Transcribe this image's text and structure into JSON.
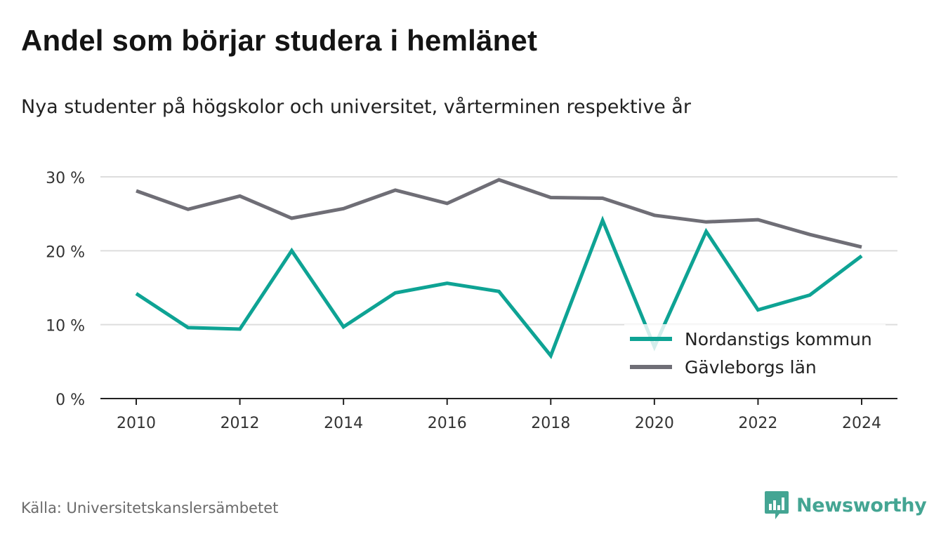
{
  "header": {
    "title": "Andel som börjar studera i hemlänet",
    "subtitle": "Nya studenter på högskolor och universitet, vårterminen respektive år"
  },
  "footer": {
    "source": "Källa: Universitetskanslersämbetet",
    "brand": "Newsworthy",
    "brand_icon": "newsworthy-logo-icon",
    "brand_color": "#44a593"
  },
  "chart_data": {
    "type": "line",
    "x": [
      2010,
      2011,
      2012,
      2013,
      2014,
      2015,
      2016,
      2017,
      2018,
      2019,
      2020,
      2021,
      2022,
      2023,
      2024
    ],
    "x_tick_labels": [
      "2010",
      "2012",
      "2014",
      "2016",
      "2018",
      "2020",
      "2022",
      "2024"
    ],
    "y_tick_labels": [
      "0 %",
      "10 %",
      "20 %",
      "30 %"
    ],
    "ylim": [
      0,
      30
    ],
    "grid": true,
    "legend_position": "bottom-right",
    "series": [
      {
        "name": "Nordanstigs kommun",
        "color": "#0ea394",
        "values": [
          14.2,
          9.6,
          9.4,
          20.0,
          9.7,
          14.3,
          15.6,
          14.5,
          5.8,
          24.1,
          7.0,
          22.6,
          12.0,
          14.0,
          19.3
        ]
      },
      {
        "name": "Gävleborgs län",
        "color": "#6f6e76",
        "values": [
          28.1,
          25.6,
          27.4,
          24.4,
          25.7,
          28.2,
          26.4,
          29.6,
          27.2,
          27.1,
          24.8,
          23.9,
          24.2,
          22.2,
          20.5
        ]
      }
    ]
  }
}
